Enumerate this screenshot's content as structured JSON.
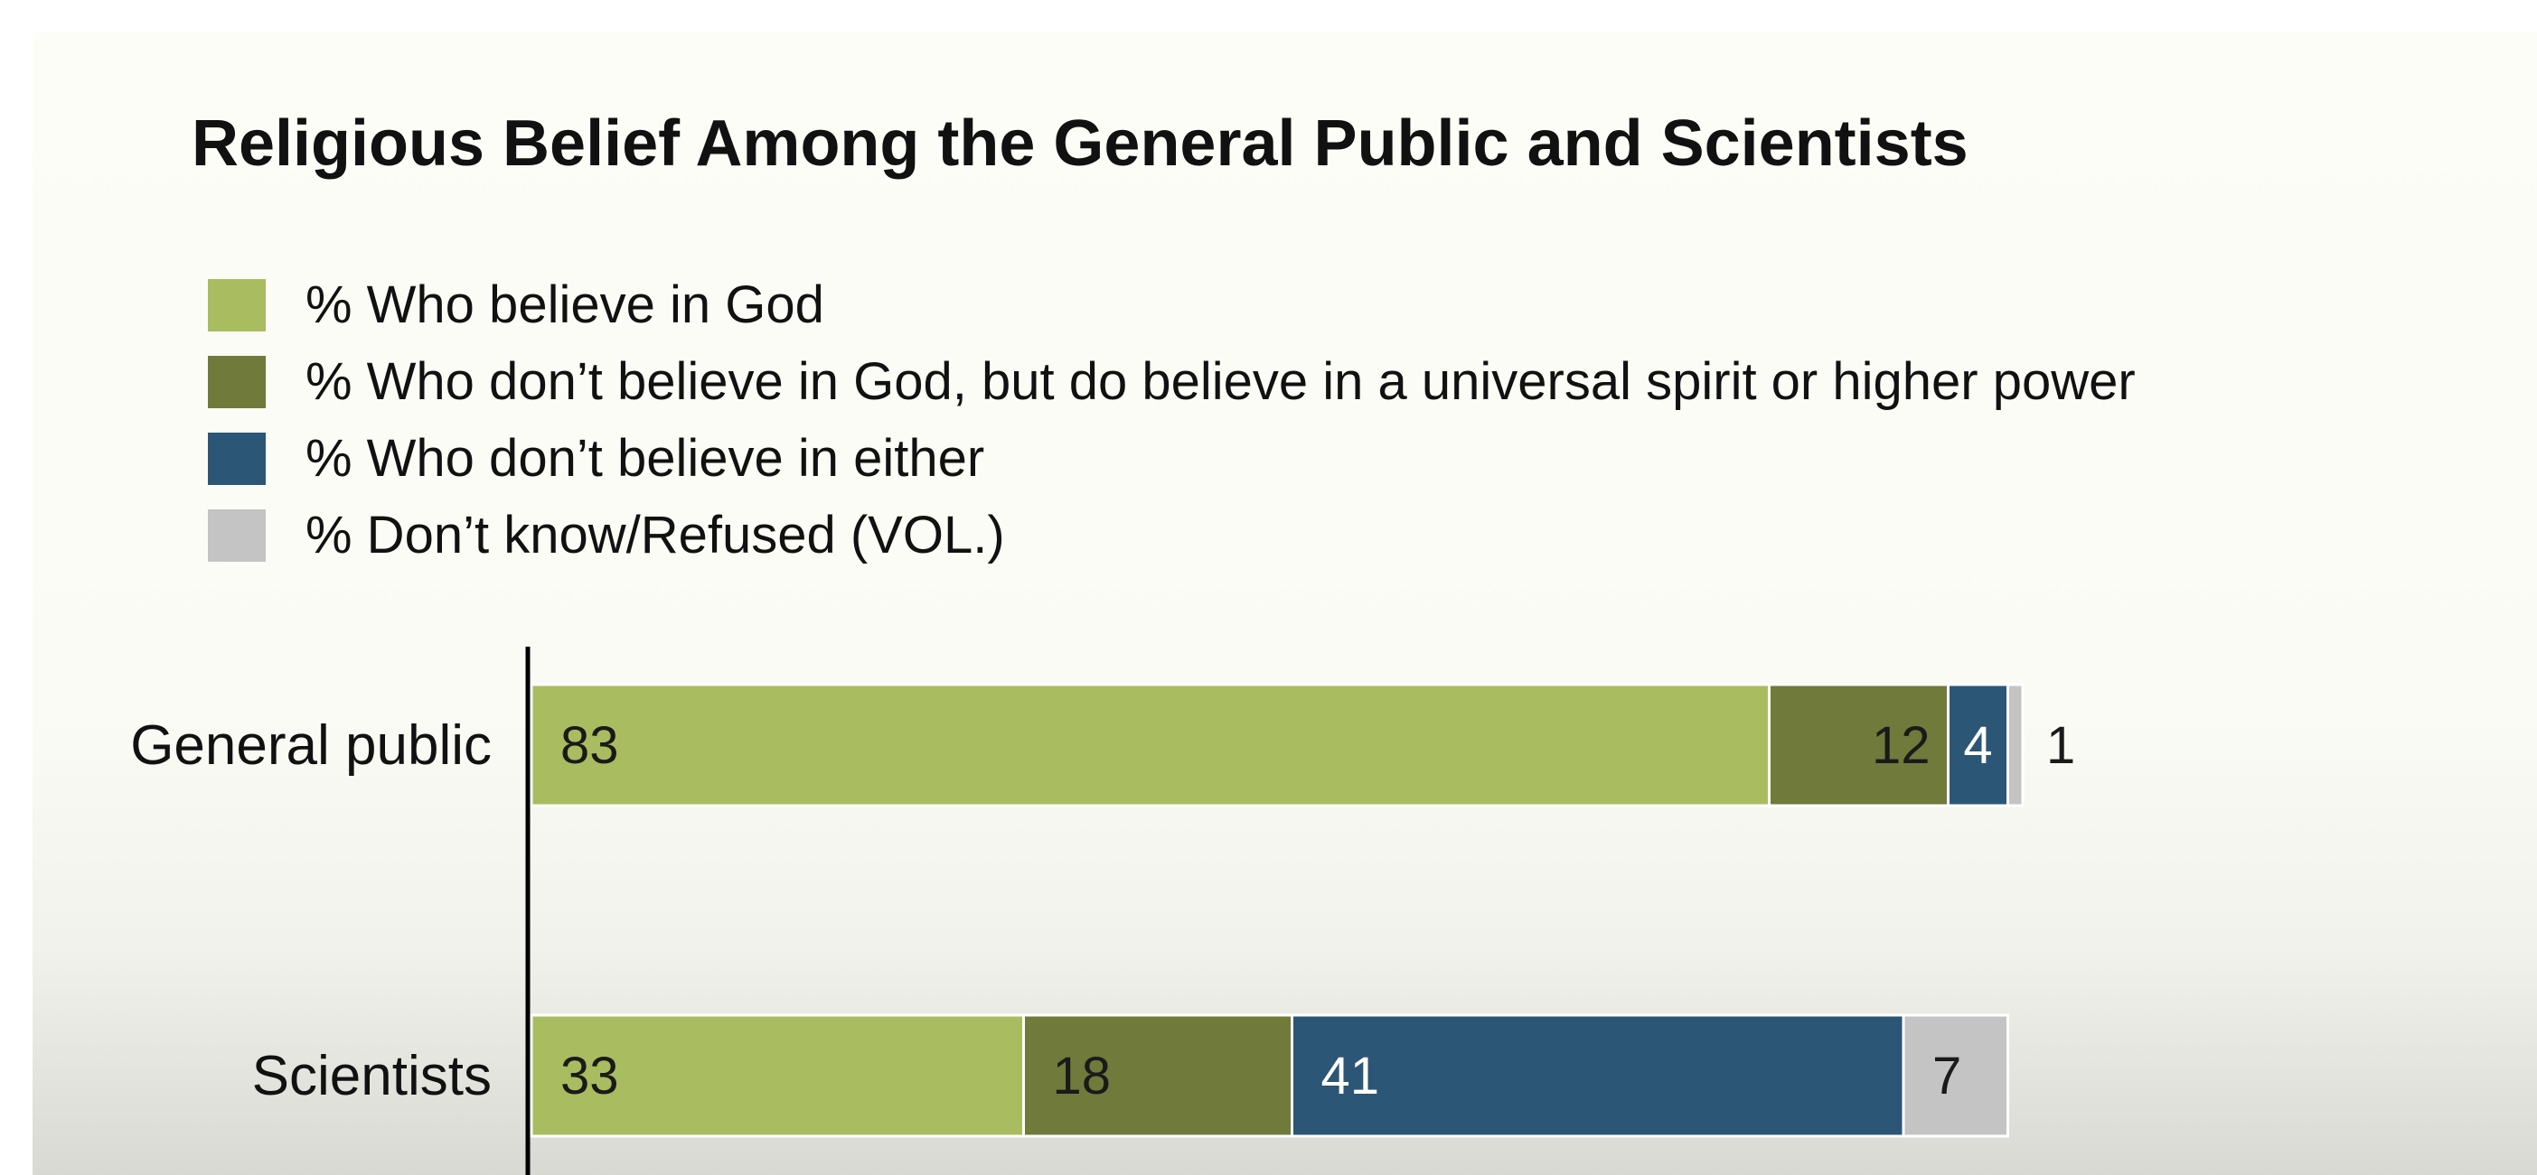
{
  "chart_data": {
    "type": "bar",
    "orientation": "horizontal",
    "stacked": true,
    "title": "Religious Belief Among the General Public and Scientists",
    "categories": [
      "General public",
      "Scientists"
    ],
    "series": [
      {
        "name": "% Who believe in God",
        "color": "#a9bc5f",
        "label_color": "#1a1a1a",
        "values": [
          83,
          33
        ]
      },
      {
        "name": "% Who don’t believe in God, but do believe in a universal spirit or higher power",
        "color": "#6f7a3b",
        "label_color": "#1a1a1a",
        "values": [
          12,
          18
        ]
      },
      {
        "name": "% Who don’t believe in either",
        "color": "#2c5675",
        "label_color": "#ffffff",
        "values": [
          4,
          41
        ]
      },
      {
        "name": "% Don’t know/Refused (VOL.)",
        "color": "#c4c4c4",
        "label_color": "#1a1a1a",
        "values": [
          1,
          7
        ]
      }
    ],
    "xlim": [
      0,
      100
    ],
    "grid": false,
    "legend": "top-left"
  }
}
